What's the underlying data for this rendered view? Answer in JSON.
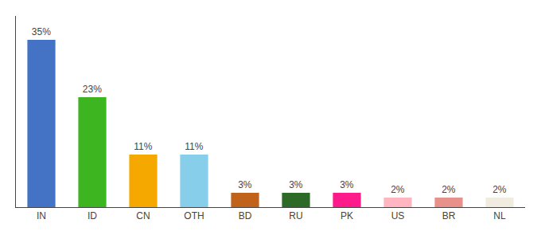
{
  "chart_data": {
    "type": "bar",
    "categories": [
      "IN",
      "ID",
      "CN",
      "OTH",
      "BD",
      "RU",
      "PK",
      "US",
      "BR",
      "NL"
    ],
    "values": [
      35,
      23,
      11,
      11,
      3,
      3,
      3,
      2,
      2,
      2
    ],
    "value_labels": [
      "35%",
      "23%",
      "11%",
      "11%",
      "3%",
      "3%",
      "3%",
      "2%",
      "2%",
      "2%"
    ],
    "colors": [
      "#4472c4",
      "#3cb521",
      "#f5a800",
      "#87ceeb",
      "#c0621a",
      "#2d6a27",
      "#ff1a8c",
      "#ffb6c1",
      "#e8908a",
      "#f0ede0"
    ],
    "ylim": [
      0,
      40
    ],
    "grid": false,
    "data_labels": true,
    "tick_labels": "x"
  }
}
